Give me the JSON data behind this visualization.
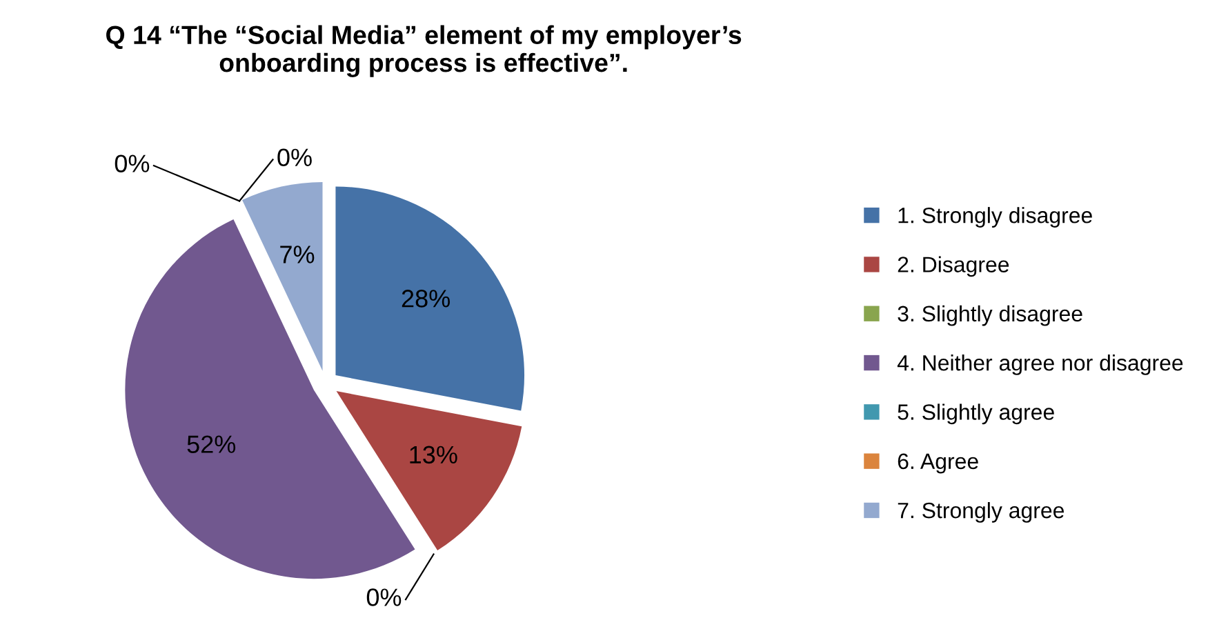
{
  "chart_data": {
    "type": "pie",
    "title": "Q 14 “The “Social Media” element of my employer’s\nonboarding process is effective”.",
    "categories": [
      "1. Strongly disagree",
      "2. Disagree",
      "3. Slightly disagree",
      "4. Neither agree nor disagree",
      "5. Slightly agree",
      "6. Agree",
      "7. Strongly agree"
    ],
    "values": [
      28,
      13,
      0,
      52,
      0,
      0,
      7
    ],
    "colors": [
      "#4572a7",
      "#aa4643",
      "#89a54e",
      "#71588f",
      "#4198af",
      "#db843d",
      "#93a9cf"
    ],
    "value_labels": [
      "28%",
      "13%",
      "0%",
      "52%",
      "0%",
      "0%",
      "7%"
    ],
    "legend": "right"
  }
}
